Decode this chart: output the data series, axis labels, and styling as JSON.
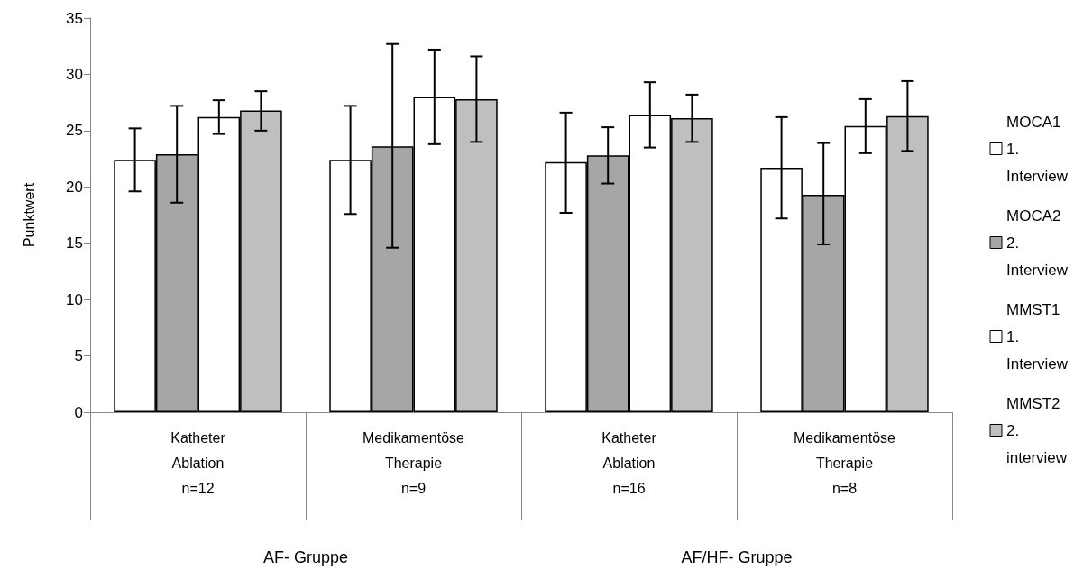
{
  "chart_data": {
    "type": "bar",
    "ylabel": "Punktwert",
    "categories": [
      "Katheter\nAblation\nn=12",
      "Medikamentöse\nTherapie\nn=9",
      "Katheter\nAblation\nn=16",
      "Medikamentöse\nTherapie\nn=8"
    ],
    "series": [
      {
        "name": "MOCA1 1. Interview",
        "color": "#ffffff",
        "values": [
          22.4,
          22.4,
          22.2,
          21.7
        ],
        "errors": [
          [
            19.6,
            25.2
          ],
          [
            17.6,
            27.2
          ],
          [
            17.7,
            26.6
          ],
          [
            17.2,
            26.2
          ]
        ]
      },
      {
        "name": "MOCA2 2. Interview",
        "color": "#a6a6a6",
        "values": [
          22.9,
          23.6,
          22.8,
          19.3
        ],
        "errors": [
          [
            18.6,
            27.2
          ],
          [
            14.6,
            32.7
          ],
          [
            20.3,
            25.3
          ],
          [
            14.9,
            23.9
          ]
        ]
      },
      {
        "name": "MMST1 1. Interview",
        "color": "#ffffff",
        "values": [
          26.2,
          28.0,
          26.4,
          25.4
        ],
        "errors": [
          [
            24.7,
            27.7
          ],
          [
            23.8,
            32.2
          ],
          [
            23.5,
            29.3
          ],
          [
            23.0,
            27.8
          ]
        ]
      },
      {
        "name": "MMST2 2. interview",
        "color": "#bfbfbf",
        "values": [
          26.8,
          27.8,
          26.1,
          26.3
        ],
        "errors": [
          [
            25.0,
            28.5
          ],
          [
            24.0,
            31.6
          ],
          [
            24.0,
            28.2
          ],
          [
            23.2,
            29.4
          ]
        ]
      }
    ],
    "annotations": [
      "AF- Gruppe",
      "AF/HF- Gruppe"
    ],
    "ylim": [
      0,
      35
    ],
    "yticks": [
      0,
      5,
      10,
      15,
      20,
      25,
      30,
      35
    ],
    "grid": false,
    "legend": "right"
  }
}
